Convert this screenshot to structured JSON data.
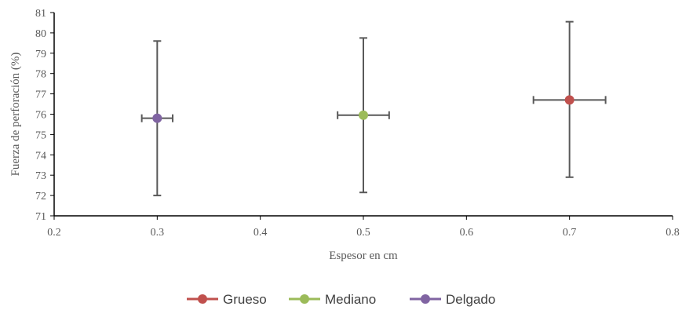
{
  "chart_data": {
    "type": "scatter",
    "xlabel": "Espesor en cm",
    "ylabel": "Fuerza de perforación (%)",
    "xlim": [
      0.2,
      0.8
    ],
    "ylim": [
      71,
      81
    ],
    "x_ticks": [
      "0.2",
      "0.3",
      "0.4",
      "0.5",
      "0.6",
      "0.7",
      "0.8"
    ],
    "y_ticks": [
      "71",
      "72",
      "73",
      "74",
      "75",
      "76",
      "77",
      "78",
      "79",
      "80",
      "81"
    ],
    "grid": false,
    "legend_position": "bottom",
    "series": [
      {
        "name": "Grueso",
        "color": "#c0504d",
        "x": 0.7,
        "y": 76.7,
        "x_err": 0.035,
        "y_low": 72.9,
        "y_high": 80.55
      },
      {
        "name": "Mediano",
        "color": "#9bbb59",
        "x": 0.5,
        "y": 75.95,
        "x_err": 0.025,
        "y_low": 72.15,
        "y_high": 79.75
      },
      {
        "name": "Delgado",
        "color": "#8064a2",
        "x": 0.3,
        "y": 75.8,
        "x_err": 0.015,
        "y_low": 72.0,
        "y_high": 79.6
      }
    ]
  }
}
